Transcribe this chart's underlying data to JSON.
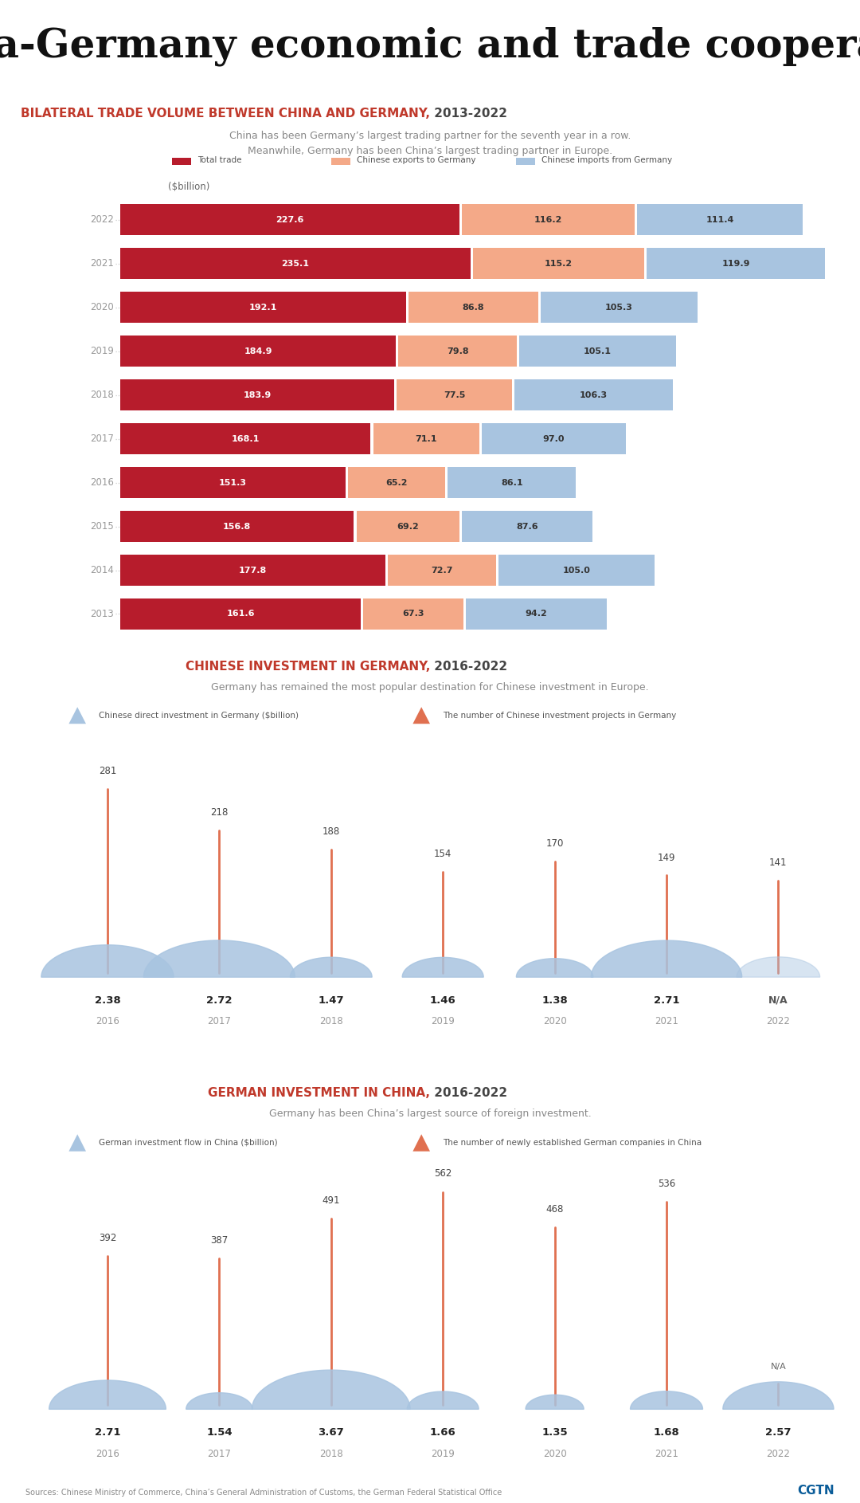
{
  "title": "China-Germany economic and trade cooperation",
  "section1_title_red": "BILATERAL TRADE VOLUME BETWEEN CHINA AND GERMANY,",
  "section1_title_black": " 2013-2022",
  "section1_subtitle": "China has been Germany’s largest trading partner for the seventh year in a row.\nMeanwhile, Germany has been China’s largest trading partner in Europe.",
  "section1_legend": [
    "Total trade",
    "Chinese exports to Germany",
    "Chinese imports from Germany"
  ],
  "section1_years": [
    "2022",
    "2021",
    "2020",
    "2019",
    "2018",
    "2017",
    "2016",
    "2015",
    "2014",
    "2013"
  ],
  "section1_total": [
    227.6,
    235.1,
    192.1,
    184.9,
    183.9,
    168.1,
    151.3,
    156.8,
    177.8,
    161.6
  ],
  "section1_exports": [
    116.2,
    115.2,
    86.8,
    79.8,
    77.5,
    71.1,
    65.2,
    69.2,
    72.7,
    67.3
  ],
  "section1_imports": [
    111.4,
    119.9,
    105.3,
    105.1,
    106.3,
    97.0,
    86.1,
    87.6,
    105.0,
    94.2
  ],
  "section1_color_total": "#b71c2c",
  "section1_color_exports": "#f4a988",
  "section1_color_imports": "#a8c4e0",
  "section2_title_red": "CHINESE INVESTMENT IN GERMANY,",
  "section2_title_black": " 2016-2022",
  "section2_subtitle": "Germany has remained the most popular destination for Chinese investment in Europe.",
  "section2_legend": [
    "Chinese direct investment in Germany ($billion)",
    "The number of Chinese investment projects in Germany"
  ],
  "section2_years": [
    "2016",
    "2017",
    "2018",
    "2019",
    "2020",
    "2021",
    "2022"
  ],
  "section2_invest": [
    2.38,
    2.72,
    1.47,
    1.46,
    1.38,
    2.71,
    null
  ],
  "section2_projects": [
    281,
    218,
    188,
    154,
    170,
    149,
    141
  ],
  "section2_invest_color": "#a8c4e0",
  "section2_project_color": "#e07050",
  "section3_title_red": "GERMAN INVESTMENT IN CHINA,",
  "section3_title_black": " 2016-2022",
  "section3_subtitle": "Germany has been China’s largest source of foreign investment.",
  "section3_legend": [
    "German investment flow in China ($billion)",
    "The number of newly established German companies in China"
  ],
  "section3_years": [
    "2016",
    "2017",
    "2018",
    "2019",
    "2020",
    "2021",
    "2022"
  ],
  "section3_invest": [
    2.71,
    1.54,
    3.67,
    1.66,
    1.35,
    1.68,
    2.57
  ],
  "section3_projects": [
    392,
    387,
    491,
    562,
    468,
    536,
    null
  ],
  "section3_invest_color": "#a8c4e0",
  "section3_project_color": "#e07050",
  "bg_color_main": "#ffffff",
  "bg_color_section": "#eeeeee",
  "source_text": "Sources: Chinese Ministry of Commerce, China’s General Administration of Customs, the German Federal Statistical Office",
  "cgtn_text": "CGTN"
}
